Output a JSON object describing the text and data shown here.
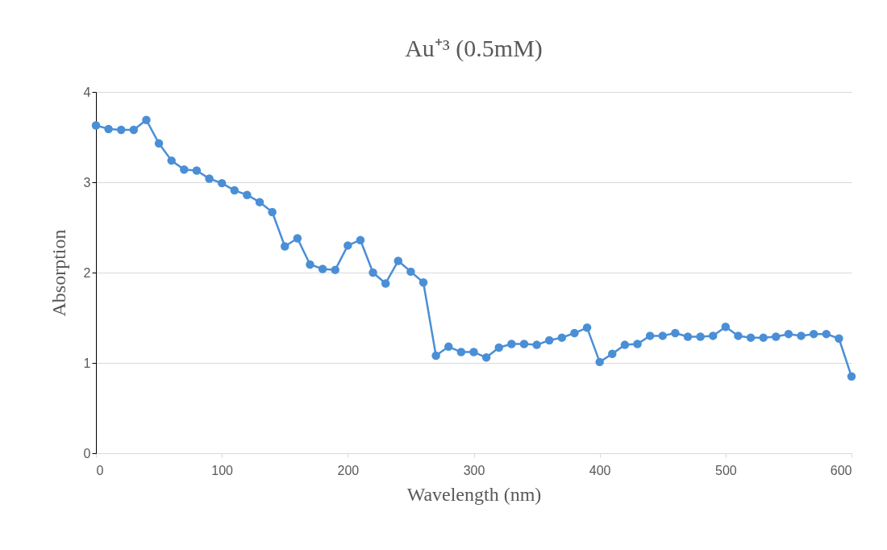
{
  "chart_data": {
    "type": "line",
    "title": "Au⁺³  (0.5mM)",
    "xlabel": "Wavelength (nm)",
    "ylabel": "Absorption",
    "x": [
      0,
      10,
      20,
      30,
      40,
      50,
      60,
      70,
      80,
      90,
      100,
      110,
      120,
      130,
      140,
      150,
      160,
      170,
      180,
      190,
      200,
      210,
      220,
      230,
      240,
      250,
      260,
      270,
      280,
      290,
      300,
      310,
      320,
      330,
      340,
      350,
      360,
      370,
      380,
      390,
      400,
      410,
      420,
      430,
      440,
      450,
      460,
      470,
      480,
      490,
      500,
      510,
      520,
      530,
      540,
      550,
      560,
      570,
      580,
      590,
      600
    ],
    "series": [
      {
        "color": "#4a8fd6",
        "values": [
          3.63,
          3.59,
          3.58,
          3.58,
          3.69,
          3.43,
          3.24,
          3.14,
          3.13,
          3.04,
          2.99,
          2.91,
          2.86,
          2.78,
          2.67,
          2.29,
          2.38,
          2.09,
          2.04,
          2.03,
          2.3,
          2.36,
          2.0,
          1.88,
          2.13,
          2.01,
          1.89,
          1.08,
          1.18,
          1.12,
          1.12,
          1.06,
          1.17,
          1.21,
          1.21,
          1.2,
          1.25,
          1.28,
          1.33,
          1.39,
          1.01,
          1.1,
          1.2,
          1.21,
          1.3,
          1.3,
          1.33,
          1.29,
          1.29,
          1.3,
          1.4,
          1.3,
          1.28,
          1.28,
          1.29,
          1.32,
          1.3,
          1.32,
          1.32,
          1.27,
          0.85
        ]
      }
    ],
    "xlim": [
      0,
      600
    ],
    "xticks": [
      0,
      100,
      200,
      300,
      400,
      500,
      600
    ],
    "ylim": [
      0,
      4
    ],
    "yticks": [
      0,
      1,
      2,
      3,
      4
    ],
    "grid": "y",
    "marker": "circle",
    "line_style": "solid"
  }
}
